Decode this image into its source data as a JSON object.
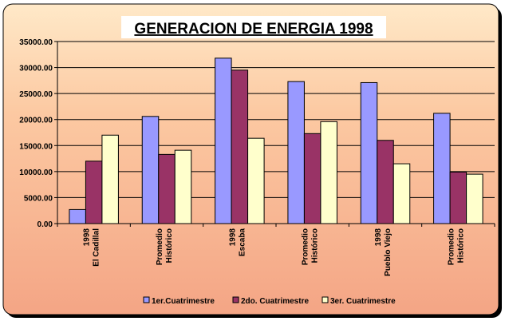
{
  "chart_data": {
    "type": "bar",
    "title": "GENERACION DE ENERGIA 1998",
    "xlabel": "",
    "ylabel": "",
    "ylim": [
      0,
      35000
    ],
    "yticks": [
      "0.00",
      "5000.00",
      "10000.00",
      "15000.00",
      "20000.00",
      "25000.00",
      "30000.00",
      "35000.00"
    ],
    "grid": true,
    "legend_position": "bottom",
    "categories": [
      [
        "1998",
        "El Cadillal"
      ],
      [
        "Promedio",
        "Histórico"
      ],
      [
        "1998",
        "Escaba"
      ],
      [
        "Promedio",
        "Histórico"
      ],
      [
        "1998",
        "Pueblo Viejo"
      ],
      [
        "Promedio",
        "Histórico"
      ]
    ],
    "series": [
      {
        "name": "1er.Cuatrimestre",
        "color": "#9999ff",
        "values": [
          2700,
          20600,
          31800,
          27300,
          27100,
          21200
        ]
      },
      {
        "name": "2do. Cuatrimestre",
        "color": "#993366",
        "values": [
          12000,
          13300,
          29500,
          17300,
          16000,
          9900
        ]
      },
      {
        "name": "3er. Cuatrimestre",
        "color": "#ffffcc",
        "values": [
          17000,
          14100,
          16400,
          19600,
          11500,
          9500
        ]
      }
    ]
  }
}
